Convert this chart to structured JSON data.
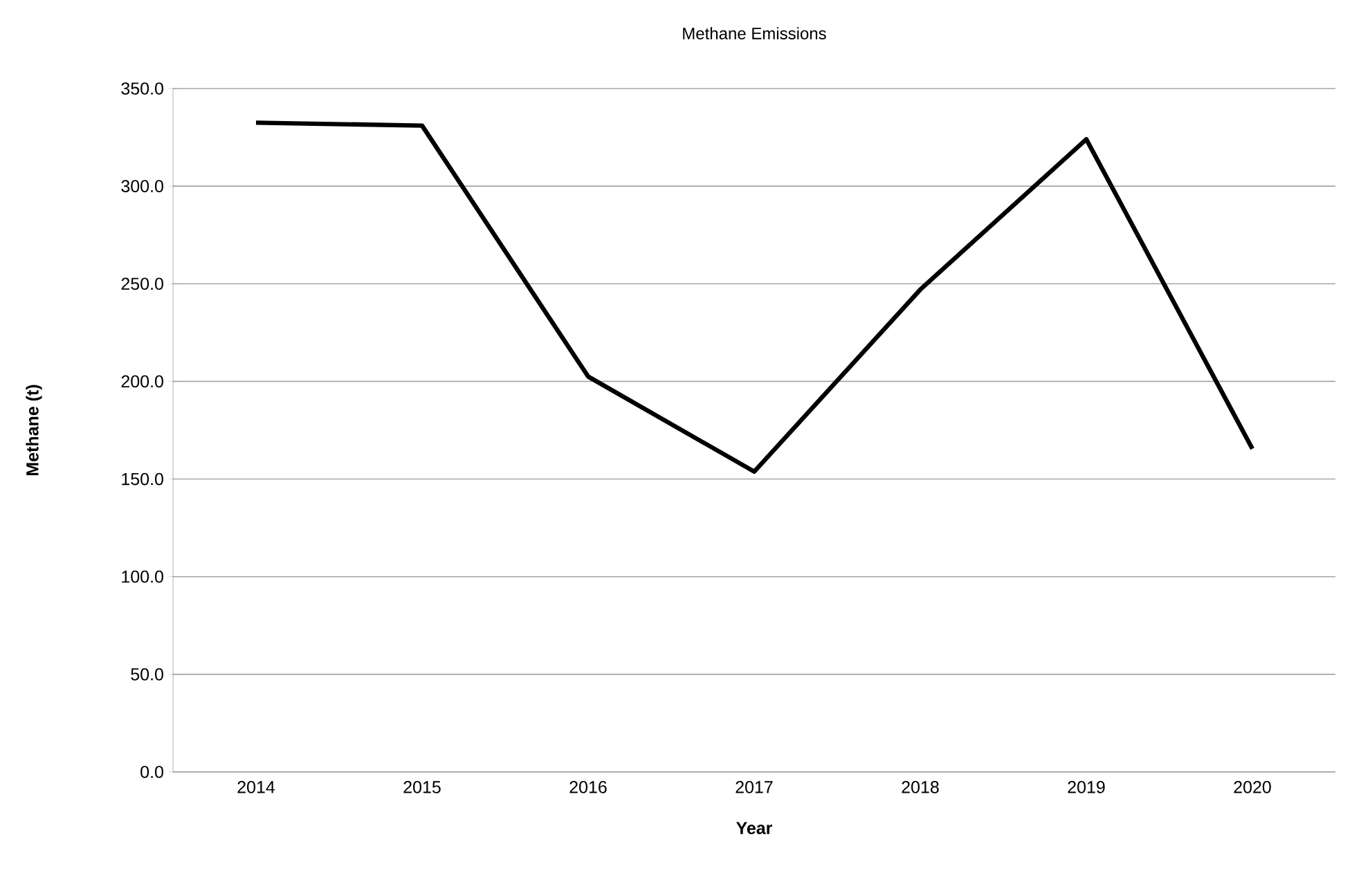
{
  "chart_data": {
    "type": "line",
    "title": "Methane Emissions",
    "xlabel": "Year",
    "ylabel": "Methane (t)",
    "categories": [
      "2014",
      "2015",
      "2016",
      "2017",
      "2018",
      "2019",
      "2020"
    ],
    "series": [
      {
        "color": "#000000",
        "values": [
          332.5,
          331.0,
          202.5,
          153.8,
          247.0,
          324.0,
          165.5
        ]
      }
    ],
    "ylim": [
      0,
      350
    ],
    "yticks": [
      {
        "value": 0,
        "label": "0.0"
      },
      {
        "value": 50,
        "label": "50.0"
      },
      {
        "value": 100,
        "label": "100.0"
      },
      {
        "value": 150,
        "label": "150.0"
      },
      {
        "value": 200,
        "label": "200.0"
      },
      {
        "value": 250,
        "label": "250.0"
      },
      {
        "value": 300,
        "label": "300.0"
      },
      {
        "value": 350,
        "label": "350.0"
      }
    ],
    "grid": "y",
    "marker": "none",
    "line_style": "solid"
  }
}
